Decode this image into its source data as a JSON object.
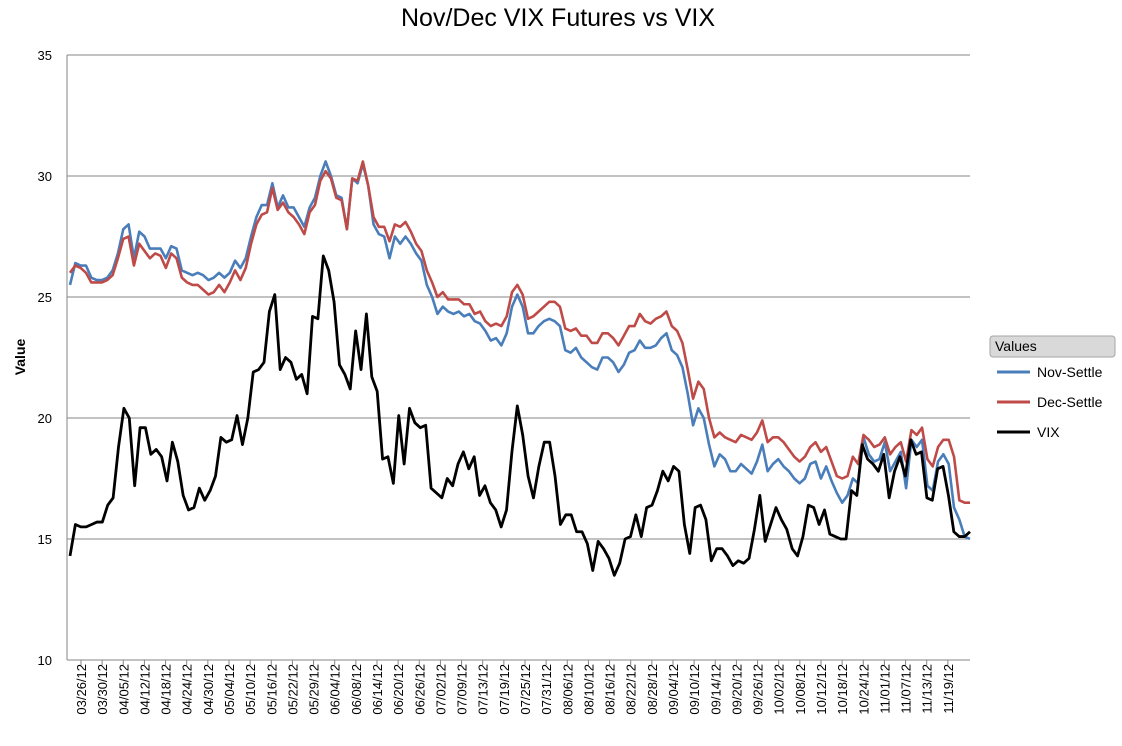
{
  "chart_data": {
    "type": "line",
    "title": "Nov/Dec VIX Futures vs VIX",
    "ylabel": "Value",
    "xlabel": "",
    "ylim": [
      10,
      35
    ],
    "yticks": [
      10,
      15,
      20,
      25,
      30,
      35
    ],
    "grid": true,
    "legend": {
      "title": "Values",
      "position": "right"
    },
    "x_tick_labels": [
      "03/26/12",
      "03/30/12",
      "04/05/12",
      "04/12/12",
      "04/18/12",
      "04/24/12",
      "04/30/12",
      "05/04/12",
      "05/10/12",
      "05/16/12",
      "05/22/12",
      "05/29/12",
      "06/04/12",
      "06/08/12",
      "06/14/12",
      "06/20/12",
      "06/26/12",
      "07/02/12",
      "07/09/12",
      "07/13/12",
      "07/19/12",
      "07/25/12",
      "07/31/12",
      "08/06/12",
      "08/10/12",
      "08/16/12",
      "08/22/12",
      "08/28/12",
      "09/04/12",
      "09/10/12",
      "09/14/12",
      "09/20/12",
      "09/26/12",
      "10/02/12",
      "10/08/12",
      "10/12/12",
      "10/18/12",
      "10/24/12",
      "11/01/12",
      "11/07/12",
      "11/13/12",
      "11/19/12"
    ],
    "series": [
      {
        "name": "Nov-Settle",
        "color": "#4a7ebb",
        "values": [
          25.5,
          26.4,
          26.3,
          26.3,
          25.8,
          25.7,
          25.7,
          25.8,
          26.1,
          26.8,
          27.8,
          28.0,
          26.6,
          27.7,
          27.5,
          27.0,
          27.0,
          27.0,
          26.6,
          27.1,
          27.0,
          26.1,
          26.0,
          25.9,
          26.0,
          25.9,
          25.7,
          25.8,
          26.0,
          25.8,
          26.0,
          26.5,
          26.2,
          26.6,
          27.5,
          28.3,
          28.8,
          28.8,
          29.7,
          28.7,
          29.2,
          28.7,
          28.7,
          28.3,
          27.9,
          28.7,
          29.1,
          30.0,
          30.6,
          30.0,
          29.2,
          29.1,
          27.8,
          29.9,
          29.7,
          30.5,
          29.6,
          28.0,
          27.6,
          27.5,
          26.6,
          27.5,
          27.2,
          27.5,
          27.2,
          26.8,
          26.5,
          25.5,
          25.0,
          24.3,
          24.6,
          24.4,
          24.3,
          24.4,
          24.2,
          24.3,
          24.0,
          23.9,
          23.6,
          23.2,
          23.3,
          23.0,
          23.5,
          24.6,
          25.1,
          24.6,
          23.5,
          23.5,
          23.8,
          24.0,
          24.1,
          24.0,
          23.8,
          22.8,
          22.7,
          22.9,
          22.5,
          22.3,
          22.1,
          22.0,
          22.5,
          22.5,
          22.3,
          21.9,
          22.2,
          22.7,
          22.8,
          23.2,
          22.9,
          22.9,
          23.0,
          23.3,
          23.5,
          22.8,
          22.6,
          22.1,
          21.0,
          19.7,
          20.4,
          20.0,
          18.9,
          18.0,
          18.5,
          18.3,
          17.8,
          17.8,
          18.1,
          17.9,
          17.7,
          18.2,
          18.9,
          17.8,
          18.1,
          18.3,
          18.0,
          17.8,
          17.5,
          17.3,
          17.5,
          18.1,
          18.2,
          17.5,
          18.0,
          17.4,
          16.9,
          16.5,
          16.8,
          17.5,
          17.3,
          19.2,
          18.5,
          18.2,
          18.3,
          19.0,
          17.8,
          18.2,
          18.6,
          17.1,
          19.1,
          18.8,
          19.1,
          17.2,
          17.0,
          18.2,
          18.5,
          18.1,
          16.3,
          15.8,
          15.1,
          15.0
        ],
        "points": []
      },
      {
        "name": "Dec-Settle",
        "color": "#be4b48",
        "values": [
          26.0,
          26.3,
          26.2,
          26.0,
          25.6,
          25.6,
          25.6,
          25.7,
          25.9,
          26.6,
          27.4,
          27.5,
          26.3,
          27.2,
          26.9,
          26.6,
          26.8,
          26.7,
          26.2,
          26.8,
          26.6,
          25.8,
          25.6,
          25.5,
          25.5,
          25.3,
          25.1,
          25.2,
          25.5,
          25.2,
          25.6,
          26.1,
          25.7,
          26.2,
          27.2,
          28.0,
          28.4,
          28.5,
          29.5,
          28.6,
          28.9,
          28.5,
          28.3,
          28.0,
          27.6,
          28.5,
          28.8,
          29.8,
          30.2,
          29.9,
          29.1,
          29.0,
          27.8,
          29.9,
          29.8,
          30.6,
          29.6,
          28.3,
          27.9,
          27.9,
          27.3,
          28.0,
          27.9,
          28.1,
          27.7,
          27.2,
          26.9,
          26.1,
          25.6,
          25.0,
          25.2,
          24.9,
          24.9,
          24.9,
          24.7,
          24.7,
          24.3,
          24.4,
          24.0,
          23.8,
          23.9,
          23.8,
          24.2,
          25.2,
          25.5,
          25.1,
          24.1,
          24.2,
          24.4,
          24.6,
          24.8,
          24.8,
          24.6,
          23.7,
          23.6,
          23.7,
          23.4,
          23.4,
          23.1,
          23.1,
          23.5,
          23.5,
          23.3,
          23.0,
          23.4,
          23.8,
          23.8,
          24.3,
          24.0,
          23.9,
          24.1,
          24.2,
          24.4,
          23.8,
          23.6,
          23.1,
          22.0,
          20.8,
          21.5,
          21.2,
          20.0,
          19.2,
          19.4,
          19.2,
          19.1,
          19.0,
          19.3,
          19.2,
          19.1,
          19.4,
          19.9,
          19.0,
          19.2,
          19.2,
          19.0,
          18.7,
          18.4,
          18.2,
          18.4,
          18.8,
          19.0,
          18.6,
          18.8,
          18.2,
          17.6,
          17.5,
          17.6,
          18.4,
          18.1,
          19.3,
          19.1,
          18.8,
          18.9,
          19.2,
          18.5,
          18.8,
          19.0,
          18.2,
          19.5,
          19.3,
          19.6,
          18.3,
          18.0,
          18.8,
          19.1,
          19.1,
          18.4,
          16.6,
          16.5,
          16.5
        ],
        "points": []
      },
      {
        "name": "VIX",
        "color": "#000000",
        "values": [
          14.3,
          15.6,
          15.5,
          15.5,
          15.6,
          15.7,
          15.7,
          16.4,
          16.7,
          18.8,
          20.4,
          20.0,
          17.2,
          19.6,
          19.6,
          18.5,
          18.7,
          18.4,
          17.4,
          19.0,
          18.2,
          16.8,
          16.2,
          16.3,
          17.1,
          16.6,
          17.0,
          17.6,
          19.2,
          19.0,
          19.1,
          20.1,
          18.9,
          20.0,
          21.9,
          22.0,
          22.3,
          24.4,
          25.1,
          22.0,
          22.5,
          22.3,
          21.6,
          21.8,
          21.0,
          24.2,
          24.1,
          26.7,
          26.1,
          24.8,
          22.2,
          21.8,
          21.2,
          23.6,
          22.0,
          24.3,
          21.7,
          21.1,
          18.3,
          18.4,
          17.3,
          20.1,
          18.1,
          20.4,
          19.8,
          19.6,
          19.7,
          17.1,
          16.9,
          16.7,
          17.5,
          17.2,
          18.1,
          18.6,
          17.9,
          18.4,
          16.8,
          17.2,
          16.5,
          16.2,
          15.5,
          16.2,
          18.6,
          20.5,
          19.3,
          17.6,
          16.7,
          18.0,
          19.0,
          19.0,
          17.6,
          15.6,
          16.0,
          16.0,
          15.3,
          15.3,
          14.8,
          13.7,
          14.9,
          14.6,
          14.2,
          13.5,
          14.0,
          15.0,
          15.1,
          16.0,
          15.1,
          16.3,
          16.4,
          17.0,
          17.8,
          17.4,
          18.0,
          17.8,
          15.6,
          14.4,
          16.3,
          16.4,
          15.8,
          14.1,
          14.6,
          14.6,
          14.3,
          13.9,
          14.1,
          14.0,
          14.2,
          15.4,
          16.8,
          14.9,
          15.6,
          16.3,
          15.8,
          15.4,
          14.6,
          14.3,
          15.1,
          16.4,
          16.3,
          15.6,
          16.2,
          15.2,
          15.1,
          15.0,
          15.0,
          17.0,
          16.8,
          18.9,
          18.3,
          18.1,
          17.8,
          18.5,
          16.7,
          17.8,
          18.4,
          17.6,
          19.1,
          18.5,
          18.6,
          16.7,
          16.6,
          17.9,
          18.0,
          16.8,
          15.3,
          15.1,
          15.1,
          15.3
        ],
        "points": []
      }
    ]
  }
}
